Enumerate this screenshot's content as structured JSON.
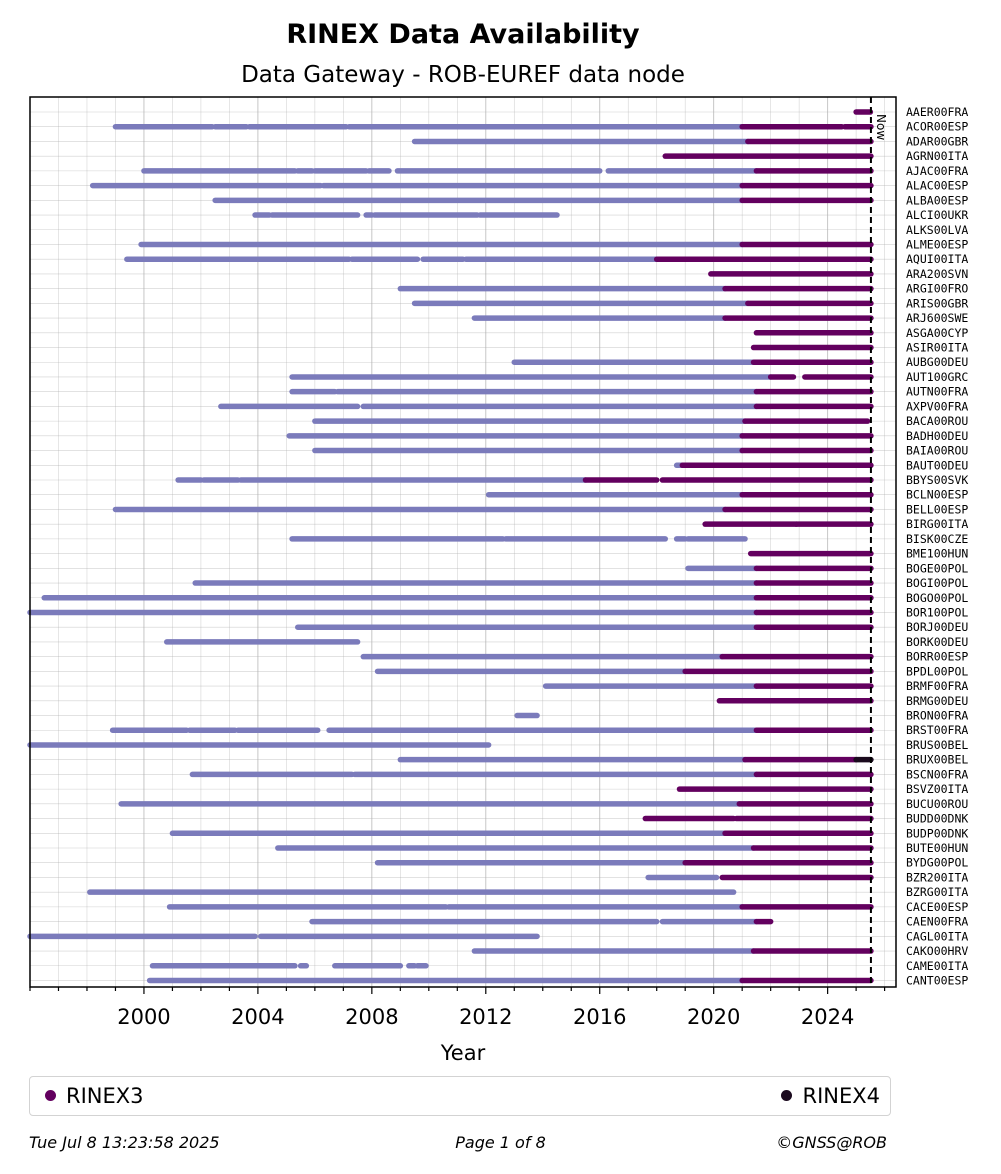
{
  "chart_data": {
    "type": "timeline",
    "title": "RINEX Data Availability",
    "subtitle": "Data Gateway - ROB-EUREF data node",
    "xlabel": "Year",
    "xlim": [
      1996.0,
      2026.4
    ],
    "xticks": [
      2000,
      2004,
      2008,
      2012,
      2016,
      2020,
      2024
    ],
    "now": 2025.52,
    "now_label": "Now",
    "colors": {
      "RINEX2": "#7b7bbb",
      "RINEX3": "#63005f",
      "RINEX4": "#1b0a1e",
      "grid": "#b0b0b0"
    },
    "legend": [
      {
        "label": "RINEX3",
        "color": "#63005f"
      },
      {
        "label": "RINEX4",
        "color": "#1b0a1e"
      }
    ],
    "stations": [
      {
        "name": "AAER00FRA",
        "segments": [
          [
            2025.0,
            2025.5,
            "r3"
          ]
        ]
      },
      {
        "name": "ACOR00ESP",
        "segments": [
          [
            1999.0,
            2002.4,
            "r2"
          ],
          [
            2002.5,
            2003.6,
            "r2"
          ],
          [
            2003.7,
            2007.1,
            "r2"
          ],
          [
            2007.2,
            2021.0,
            "r2"
          ],
          [
            2021.0,
            2024.5,
            "r3"
          ],
          [
            2024.6,
            2025.52,
            "r3"
          ]
        ]
      },
      {
        "name": "ADAR00GBR",
        "segments": [
          [
            2009.5,
            2021.2,
            "r2"
          ],
          [
            2021.2,
            2025.52,
            "r3"
          ]
        ]
      },
      {
        "name": "AGRN00ITA",
        "segments": [
          [
            2018.3,
            2025.52,
            "r3"
          ]
        ]
      },
      {
        "name": "AJAC00FRA",
        "segments": [
          [
            2000.0,
            2005.3,
            "r2"
          ],
          [
            2005.4,
            2005.9,
            "r2"
          ],
          [
            2006.0,
            2007.8,
            "r2"
          ],
          [
            2007.9,
            2008.6,
            "r2"
          ],
          [
            2008.9,
            2016.0,
            "r2"
          ],
          [
            2016.3,
            2021.5,
            "r2"
          ],
          [
            2021.5,
            2025.52,
            "r3"
          ]
        ]
      },
      {
        "name": "ALAC00ESP",
        "segments": [
          [
            1998.2,
            2006.2,
            "r2"
          ],
          [
            2006.3,
            2021.0,
            "r2"
          ],
          [
            2021.0,
            2025.52,
            "r3"
          ]
        ]
      },
      {
        "name": "ALBA00ESP",
        "segments": [
          [
            2002.5,
            2021.0,
            "r2"
          ],
          [
            2021.0,
            2025.52,
            "r3"
          ]
        ]
      },
      {
        "name": "ALCI00UKR",
        "segments": [
          [
            2003.9,
            2004.4,
            "r2"
          ],
          [
            2004.5,
            2007.5,
            "r2"
          ],
          [
            2007.8,
            2008.0,
            "r2"
          ],
          [
            2008.1,
            2011.7,
            "r2"
          ],
          [
            2011.8,
            2014.5,
            "r2"
          ]
        ]
      },
      {
        "name": "ALKS00LVA",
        "segments": []
      },
      {
        "name": "ALME00ESP",
        "segments": [
          [
            1999.9,
            2021.0,
            "r2"
          ],
          [
            2021.0,
            2025.52,
            "r3"
          ]
        ]
      },
      {
        "name": "AQUI00ITA",
        "segments": [
          [
            1999.4,
            2007.2,
            "r2"
          ],
          [
            2007.3,
            2009.6,
            "r2"
          ],
          [
            2009.8,
            2011.2,
            "r2"
          ],
          [
            2011.3,
            2018.0,
            "r2"
          ],
          [
            2018.0,
            2025.52,
            "r3"
          ]
        ]
      },
      {
        "name": "ARA200SVN",
        "segments": [
          [
            2019.9,
            2025.52,
            "r3"
          ]
        ]
      },
      {
        "name": "ARGI00FRO",
        "segments": [
          [
            2009.0,
            2020.4,
            "r2"
          ],
          [
            2020.4,
            2025.52,
            "r3"
          ]
        ]
      },
      {
        "name": "ARIS00GBR",
        "segments": [
          [
            2009.5,
            2021.2,
            "r2"
          ],
          [
            2021.2,
            2025.52,
            "r3"
          ]
        ]
      },
      {
        "name": "ARJ600SWE",
        "segments": [
          [
            2011.6,
            2020.4,
            "r2"
          ],
          [
            2020.4,
            2025.52,
            "r3"
          ]
        ]
      },
      {
        "name": "ASGA00CYP",
        "segments": [
          [
            2021.5,
            2025.52,
            "r3"
          ]
        ]
      },
      {
        "name": "ASIR00ITA",
        "segments": [
          [
            2021.4,
            2025.52,
            "r3"
          ]
        ]
      },
      {
        "name": "AUBG00DEU",
        "segments": [
          [
            2013.0,
            2021.4,
            "r2"
          ],
          [
            2021.4,
            2025.52,
            "r3"
          ]
        ]
      },
      {
        "name": "AUT100GRC",
        "segments": [
          [
            2005.2,
            2022.0,
            "r2"
          ],
          [
            2022.0,
            2022.8,
            "r3"
          ],
          [
            2023.2,
            2025.52,
            "r3"
          ]
        ]
      },
      {
        "name": "AUTN00FRA",
        "segments": [
          [
            2005.2,
            2006.7,
            "r2"
          ],
          [
            2006.8,
            2021.5,
            "r2"
          ],
          [
            2021.5,
            2025.52,
            "r3"
          ]
        ]
      },
      {
        "name": "AXPV00FRA",
        "segments": [
          [
            2002.7,
            2007.5,
            "r2"
          ],
          [
            2007.7,
            2021.5,
            "r2"
          ],
          [
            2021.5,
            2025.52,
            "r3"
          ]
        ]
      },
      {
        "name": "BACA00ROU",
        "segments": [
          [
            2006.0,
            2021.1,
            "r2"
          ],
          [
            2021.1,
            2025.4,
            "r3"
          ]
        ]
      },
      {
        "name": "BADH00DEU",
        "segments": [
          [
            2005.1,
            2021.0,
            "r2"
          ],
          [
            2021.0,
            2025.52,
            "r3"
          ]
        ]
      },
      {
        "name": "BAIA00ROU",
        "segments": [
          [
            2006.0,
            2021.0,
            "r2"
          ],
          [
            2021.0,
            2025.52,
            "r3"
          ]
        ]
      },
      {
        "name": "BAUT00DEU",
        "segments": [
          [
            2018.7,
            2018.9,
            "r2"
          ],
          [
            2018.9,
            2025.52,
            "r3"
          ]
        ]
      },
      {
        "name": "BBYS00SVK",
        "segments": [
          [
            2001.2,
            2002.0,
            "r2"
          ],
          [
            2002.1,
            2003.3,
            "r2"
          ],
          [
            2003.4,
            2015.5,
            "r2"
          ],
          [
            2015.5,
            2018.0,
            "r3"
          ],
          [
            2018.2,
            2025.52,
            "r3"
          ]
        ]
      },
      {
        "name": "BCLN00ESP",
        "segments": [
          [
            2012.1,
            2021.0,
            "r2"
          ],
          [
            2021.0,
            2025.52,
            "r3"
          ]
        ]
      },
      {
        "name": "BELL00ESP",
        "segments": [
          [
            1999.0,
            2020.4,
            "r2"
          ],
          [
            2020.4,
            2025.52,
            "r3"
          ]
        ]
      },
      {
        "name": "BIRG00ITA",
        "segments": [
          [
            2019.7,
            2022.9,
            "r3"
          ],
          [
            2022.9,
            2025.52,
            "r3"
          ]
        ]
      },
      {
        "name": "BISK00CZE",
        "segments": [
          [
            2005.2,
            2012.6,
            "r2"
          ],
          [
            2012.7,
            2018.3,
            "r2"
          ],
          [
            2018.7,
            2019.0,
            "r2"
          ],
          [
            2019.1,
            2021.1,
            "r2"
          ]
        ]
      },
      {
        "name": "BME100HUN",
        "segments": [
          [
            2021.3,
            2025.52,
            "r3"
          ]
        ]
      },
      {
        "name": "BOGE00POL",
        "segments": [
          [
            2019.1,
            2021.5,
            "r2"
          ],
          [
            2021.5,
            2025.52,
            "r3"
          ]
        ]
      },
      {
        "name": "BOGI00POL",
        "segments": [
          [
            2001.8,
            2021.5,
            "r2"
          ],
          [
            2021.5,
            2025.52,
            "r3"
          ]
        ]
      },
      {
        "name": "BOGO00POL",
        "segments": [
          [
            1996.5,
            2021.5,
            "r2"
          ],
          [
            2021.5,
            2025.52,
            "r3"
          ]
        ]
      },
      {
        "name": "BOR100POL",
        "segments": [
          [
            1996.0,
            2021.5,
            "r2"
          ],
          [
            2021.5,
            2025.52,
            "r3"
          ]
        ]
      },
      {
        "name": "BORJ00DEU",
        "segments": [
          [
            2005.4,
            2021.5,
            "r2"
          ],
          [
            2021.5,
            2025.52,
            "r3"
          ]
        ]
      },
      {
        "name": "BORK00DEU",
        "segments": [
          [
            2000.8,
            2007.5,
            "r2"
          ]
        ]
      },
      {
        "name": "BORR00ESP",
        "segments": [
          [
            2007.7,
            2020.3,
            "r2"
          ],
          [
            2020.3,
            2025.52,
            "r3"
          ]
        ]
      },
      {
        "name": "BPDL00POL",
        "segments": [
          [
            2008.2,
            2019.0,
            "r2"
          ],
          [
            2019.0,
            2025.52,
            "r3"
          ]
        ]
      },
      {
        "name": "BRMF00FRA",
        "segments": [
          [
            2014.1,
            2021.5,
            "r2"
          ],
          [
            2021.5,
            2025.52,
            "r3"
          ]
        ]
      },
      {
        "name": "BRMG00DEU",
        "segments": [
          [
            2020.2,
            2025.52,
            "r3"
          ]
        ]
      },
      {
        "name": "BRON00FRA",
        "segments": [
          [
            2013.1,
            2013.8,
            "r2"
          ]
        ]
      },
      {
        "name": "BRST00FRA",
        "segments": [
          [
            1998.9,
            2001.5,
            "r2"
          ],
          [
            2001.6,
            2003.2,
            "r2"
          ],
          [
            2003.3,
            2006.1,
            "r2"
          ],
          [
            2006.5,
            2021.5,
            "r2"
          ],
          [
            2021.5,
            2025.52,
            "r3"
          ]
        ]
      },
      {
        "name": "BRUS00BEL",
        "segments": [
          [
            1996.0,
            2012.1,
            "r2"
          ]
        ]
      },
      {
        "name": "BRUX00BEL",
        "segments": [
          [
            2009.0,
            2021.1,
            "r2"
          ],
          [
            2021.1,
            2025.0,
            "r3"
          ],
          [
            2025.0,
            2025.52,
            "r4"
          ]
        ]
      },
      {
        "name": "BSCN00FRA",
        "segments": [
          [
            2001.7,
            2007.3,
            "r2"
          ],
          [
            2007.4,
            2021.5,
            "r2"
          ],
          [
            2021.5,
            2025.52,
            "r3"
          ]
        ]
      },
      {
        "name": "BSVZ00ITA",
        "segments": [
          [
            2018.8,
            2025.52,
            "r3"
          ]
        ]
      },
      {
        "name": "BUCU00ROU",
        "segments": [
          [
            1999.2,
            2020.9,
            "r2"
          ],
          [
            2020.9,
            2025.52,
            "r3"
          ]
        ]
      },
      {
        "name": "BUDD00DNK",
        "segments": [
          [
            2017.6,
            2020.7,
            "r3"
          ],
          [
            2020.8,
            2025.52,
            "r3"
          ]
        ]
      },
      {
        "name": "BUDP00DNK",
        "segments": [
          [
            2001.0,
            2020.4,
            "r2"
          ],
          [
            2020.4,
            2025.52,
            "r3"
          ]
        ]
      },
      {
        "name": "BUTE00HUN",
        "segments": [
          [
            2004.7,
            2021.4,
            "r2"
          ],
          [
            2021.4,
            2025.52,
            "r3"
          ]
        ]
      },
      {
        "name": "BYDG00POL",
        "segments": [
          [
            2008.2,
            2019.0,
            "r2"
          ],
          [
            2019.0,
            2025.52,
            "r3"
          ]
        ]
      },
      {
        "name": "BZR200ITA",
        "segments": [
          [
            2017.7,
            2020.1,
            "r2"
          ],
          [
            2020.3,
            2025.52,
            "r3"
          ]
        ]
      },
      {
        "name": "BZRG00ITA",
        "segments": [
          [
            1998.1,
            2020.7,
            "r2"
          ]
        ]
      },
      {
        "name": "CACE00ESP",
        "segments": [
          [
            2000.9,
            2010.6,
            "r2"
          ],
          [
            2010.7,
            2021.0,
            "r2"
          ],
          [
            2021.0,
            2025.52,
            "r3"
          ]
        ]
      },
      {
        "name": "CAEN00FRA",
        "segments": [
          [
            2005.9,
            2018.0,
            "r2"
          ],
          [
            2018.2,
            2021.5,
            "r2"
          ],
          [
            2021.5,
            2022.0,
            "r3"
          ]
        ]
      },
      {
        "name": "CAGL00ITA",
        "segments": [
          [
            1996.0,
            2003.9,
            "r2"
          ],
          [
            2004.1,
            2013.8,
            "r2"
          ]
        ]
      },
      {
        "name": "CAKO00HRV",
        "segments": [
          [
            2011.6,
            2021.4,
            "r2"
          ],
          [
            2021.4,
            2025.52,
            "r3"
          ]
        ]
      },
      {
        "name": "CAME00ITA",
        "segments": [
          [
            2000.3,
            2005.3,
            "r2"
          ],
          [
            2005.5,
            2005.7,
            "r2"
          ],
          [
            2006.7,
            2009.0,
            "r2"
          ],
          [
            2009.3,
            2009.5,
            "r2"
          ],
          [
            2009.6,
            2009.9,
            "r2"
          ]
        ]
      },
      {
        "name": "CANT00ESP",
        "segments": [
          [
            2000.2,
            2021.0,
            "r2"
          ],
          [
            2021.0,
            2025.52,
            "r3"
          ]
        ]
      }
    ]
  },
  "footer": {
    "timestamp": "Tue Jul  8 13:23:58 2025",
    "page": "Page 1 of 8",
    "credit": "©GNSS@ROB"
  }
}
